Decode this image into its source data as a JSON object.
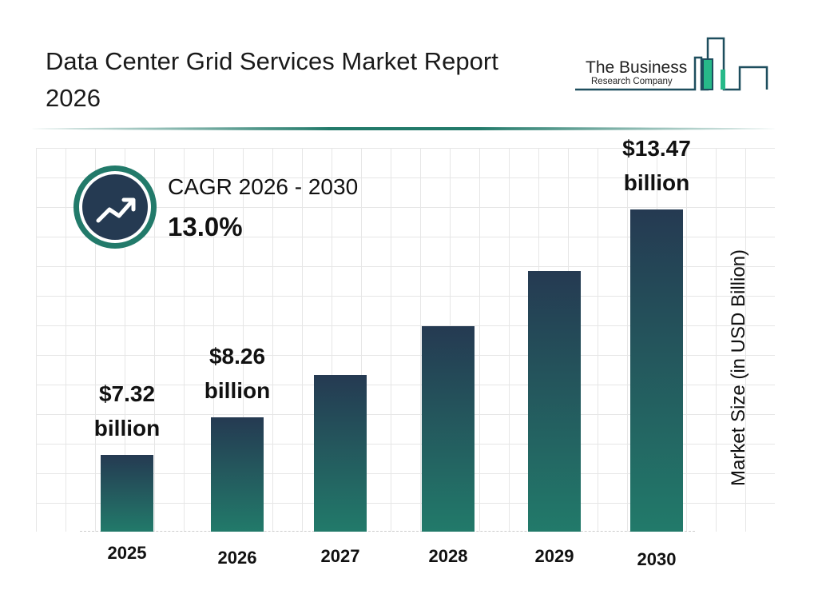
{
  "header": {
    "title": "Data Center Grid Services Market Report 2026"
  },
  "logo": {
    "line1": "The Business",
    "line2": "Research Company"
  },
  "cagr": {
    "label": "CAGR 2026 - 2030",
    "value": "13.0%",
    "icon": "trending-up-icon"
  },
  "colors": {
    "bar_top": "#253a52",
    "bar_bottom": "#227a6a",
    "accent": "#227a6a"
  },
  "chart_data": {
    "type": "bar",
    "title": "Data Center Grid Services Market Report 2026",
    "categories": [
      "2025",
      "2026",
      "2027",
      "2028",
      "2029",
      "2030"
    ],
    "values": [
      7.32,
      8.26,
      9.33,
      10.55,
      11.92,
      13.47
    ],
    "data_labels": [
      {
        "value": "$7.32",
        "unit": "billion"
      },
      {
        "value": "$8.26",
        "unit": "billion"
      },
      null,
      null,
      null,
      {
        "value": "$13.47",
        "unit": "billion"
      }
    ],
    "xlabel": "",
    "ylabel": "Market Size (in USD Billion)",
    "ylim": [
      5.4,
      15
    ],
    "grid": true
  }
}
